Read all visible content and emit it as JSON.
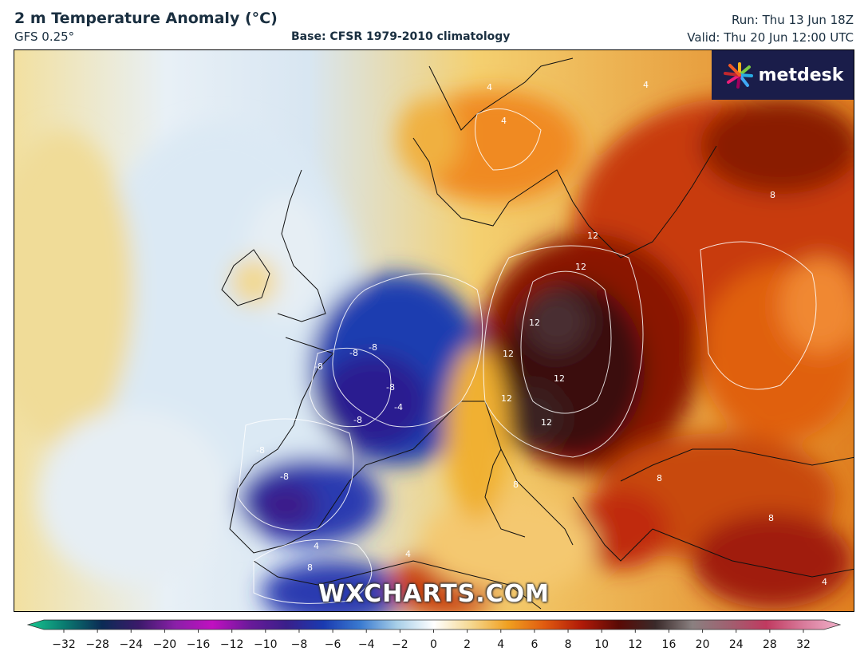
{
  "header": {
    "title": "2 m Temperature Anomaly (°C)",
    "model": "GFS 0.25°",
    "base": "Base: CFSR 1979-2010 climatology",
    "run": "Run: Thu 13 Jun 18Z",
    "valid": "Valid: Thu 20 Jun 12:00 UTC"
  },
  "branding": {
    "logo_text": "metdesk",
    "logo_icon": "metdesk-burst-icon",
    "watermark": "WXCHARTS.COM"
  },
  "colorbar": {
    "ticks": [
      "−32",
      "−28",
      "−24",
      "−20",
      "−16",
      "−12",
      "−10",
      "−8",
      "−6",
      "−4",
      "−2",
      "0",
      "2",
      "4",
      "6",
      "8",
      "10",
      "12",
      "16",
      "20",
      "24",
      "28",
      "32"
    ],
    "stops": [
      "#18c890",
      "#0a7a70",
      "#0b2b55",
      "#3b1a6a",
      "#8a20a8",
      "#c010c0",
      "#6a1a9a",
      "#3a1f8a",
      "#1a3ab0",
      "#3a7ad0",
      "#a8cfe8",
      "#ffffff",
      "#f5d890",
      "#f0a020",
      "#e05a10",
      "#b01a08",
      "#5a0a05",
      "#3a2a2a",
      "#8a8080",
      "#a06070",
      "#c03a60",
      "#d87a9a",
      "#f0b0c8"
    ]
  },
  "map": {
    "contour_labels": [
      {
        "text": "4"
      },
      {
        "text": "4"
      },
      {
        "text": "4"
      },
      {
        "text": "8"
      },
      {
        "text": "12"
      },
      {
        "text": "12"
      },
      {
        "text": "12"
      },
      {
        "text": "12"
      },
      {
        "text": "12"
      },
      {
        "text": "12"
      },
      {
        "text": "12"
      },
      {
        "text": "-8"
      },
      {
        "text": "-8"
      },
      {
        "text": "-8"
      },
      {
        "text": "-8"
      },
      {
        "text": "-8"
      },
      {
        "text": "-4"
      },
      {
        "text": "-8"
      },
      {
        "text": "-8"
      },
      {
        "text": "8"
      },
      {
        "text": "8"
      },
      {
        "text": "8"
      },
      {
        "text": "4"
      },
      {
        "text": "4"
      },
      {
        "text": "8"
      },
      {
        "text": "4"
      }
    ]
  }
}
